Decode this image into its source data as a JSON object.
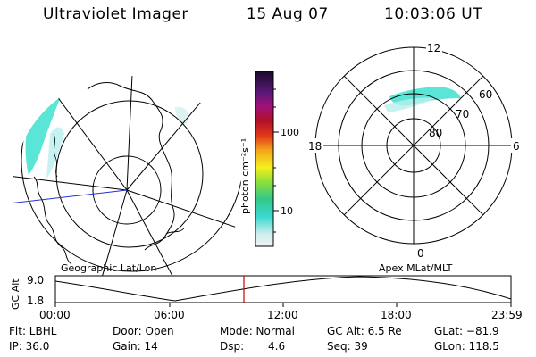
{
  "header": {
    "title": "Ultraviolet Imager",
    "date": "15 Aug 07",
    "time": "10:03:06 UT"
  },
  "colorbar": {
    "unit_label": "photon cm⁻²s⁻¹",
    "ticks": [
      "100",
      "10"
    ]
  },
  "geo_panel": {
    "label": "Geographic Lat/Lon"
  },
  "polar_panel": {
    "label": "Apex MLat/MLT",
    "mlt_labels": {
      "top": "12",
      "left": "18",
      "right": "6",
      "bottom": "0"
    },
    "mlat_labels": [
      "60",
      "70",
      "80"
    ]
  },
  "orbit_panel": {
    "ylabel": "GC Alt",
    "y_ticks": [
      "9.0",
      "1.8"
    ],
    "x_ticks": [
      "00:00",
      "06:00",
      "12:00",
      "18:00",
      "23:59"
    ]
  },
  "status": {
    "flt": "Flt: LBHL",
    "ip": "IP: 36.0",
    "door": "Door: Open",
    "gain": "Gain: 14",
    "mode": "Mode: Normal",
    "dsp_label": "Dsp:",
    "dsp_value": "4.6",
    "gc_alt": "GC Alt: 6.5 Re",
    "seq": "Seq: 39",
    "glat": "GLat: −81.9",
    "glon": "GLon: 118.5"
  },
  "colors": {
    "cyan": "#3de0d0",
    "light_cyan": "#b8f0ee",
    "orbit_marker": "#cc0000",
    "meridian": "#2233cc"
  }
}
